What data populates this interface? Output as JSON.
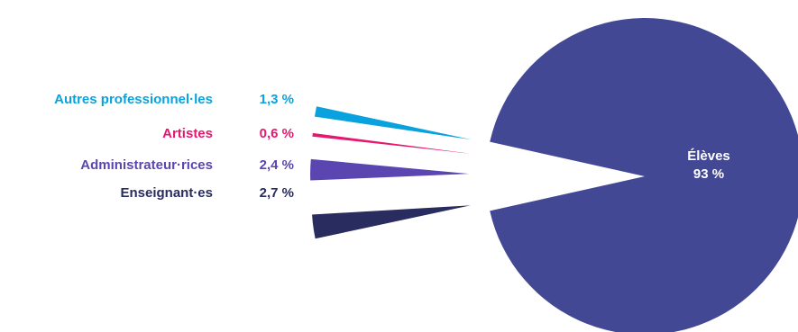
{
  "chart_data": {
    "type": "pie",
    "title": "",
    "series": [
      {
        "name": "",
        "slices": [
          {
            "label": "Élèves",
            "value": 93,
            "value_label": "93 %",
            "color": "#434895"
          },
          {
            "label": "Enseignant·es",
            "value": 2.7,
            "value_label": "2,7 %",
            "color": "#282C5E"
          },
          {
            "label": "Administrateur·rices",
            "value": 2.4,
            "value_label": "2,4 %",
            "color": "#5B45B1"
          },
          {
            "label": "Artistes",
            "value": 0.6,
            "value_label": "0,6 %",
            "color": "#E5176F"
          },
          {
            "label": "Autres professionnel·les",
            "value": 1.3,
            "value_label": "1,3 %",
            "color": "#0AA2DE"
          }
        ]
      }
    ],
    "legend_placement": "left",
    "exploded_slices": [
      "Enseignant·es",
      "Administrateur·rices",
      "Artistes",
      "Autres professionnel·les"
    ]
  }
}
